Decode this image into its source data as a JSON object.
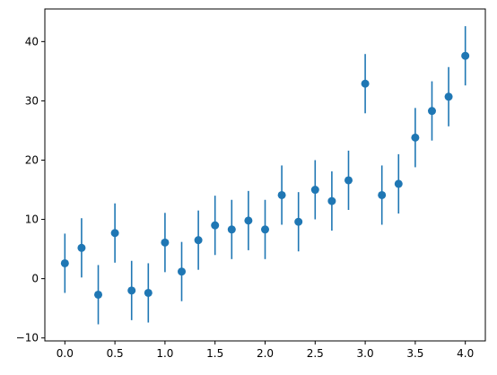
{
  "chart_data": {
    "type": "scatter",
    "title": "",
    "xlabel": "",
    "ylabel": "",
    "xlim": [
      -0.2,
      4.2
    ],
    "ylim": [
      -10.5,
      45.5
    ],
    "xticks": [
      0.0,
      0.5,
      1.0,
      1.5,
      2.0,
      2.5,
      3.0,
      3.5,
      4.0
    ],
    "xtick_labels": [
      "0.0",
      "0.5",
      "1.0",
      "1.5",
      "2.0",
      "2.5",
      "3.0",
      "3.5",
      "4.0"
    ],
    "yticks": [
      -10,
      0,
      10,
      20,
      30,
      40
    ],
    "ytick_labels": [
      "−10",
      "0",
      "10",
      "20",
      "30",
      "40"
    ],
    "grid": false,
    "series": [
      {
        "marker_color": "#1f77b4",
        "error_bar": 5,
        "x": [
          0.0,
          0.1667,
          0.3333,
          0.5,
          0.6667,
          0.8333,
          1.0,
          1.1667,
          1.3333,
          1.5,
          1.6667,
          1.8333,
          2.0,
          2.1667,
          2.3333,
          2.5,
          2.6667,
          2.8333,
          3.0,
          3.1667,
          3.3333,
          3.5,
          3.6667,
          3.8333,
          4.0
        ],
        "y": [
          2.6,
          5.2,
          -2.7,
          7.7,
          -2.0,
          -2.4,
          6.1,
          1.2,
          6.5,
          9.0,
          8.3,
          9.8,
          8.3,
          14.1,
          9.6,
          15.0,
          13.1,
          16.6,
          32.9,
          14.1,
          16.0,
          23.8,
          28.3,
          30.7,
          37.6
        ]
      }
    ]
  }
}
